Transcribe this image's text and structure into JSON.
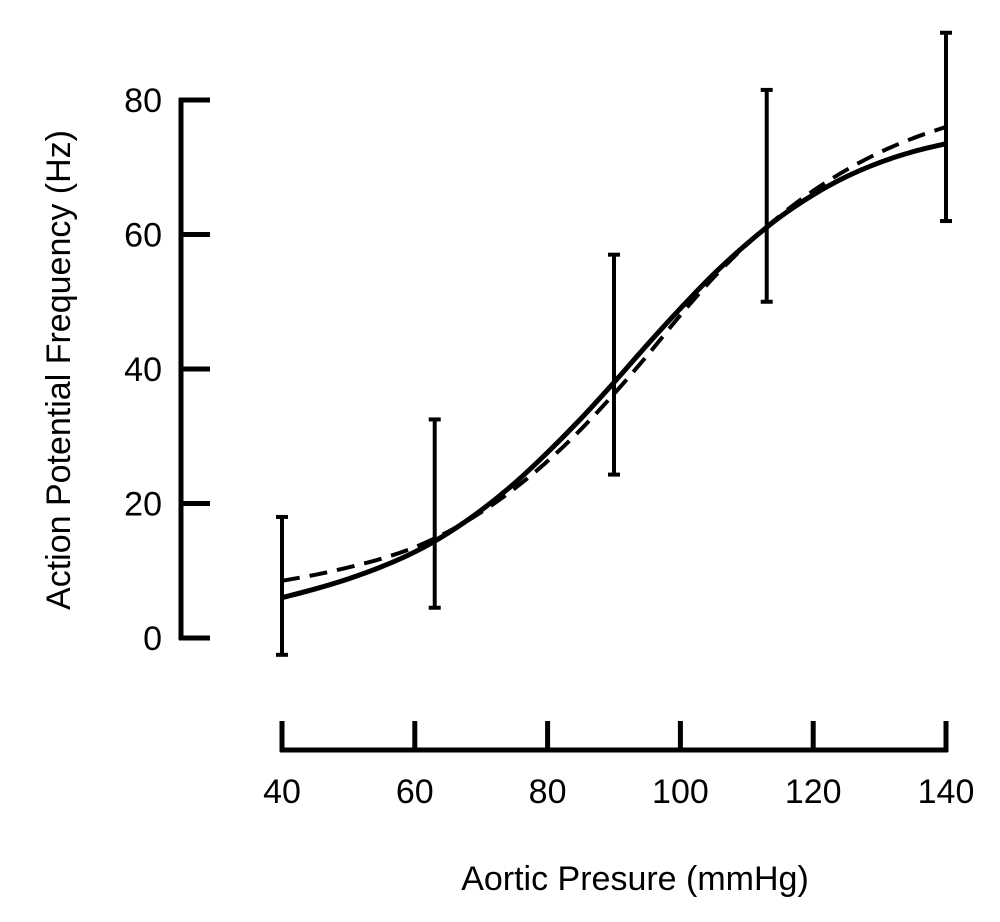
{
  "chart_data": {
    "type": "line",
    "xlabel": "Aortic Presure (mmHg)",
    "ylabel": "Action Potential Frequency (Hz)",
    "x_ticks": [
      40,
      60,
      80,
      100,
      120,
      140
    ],
    "y_ticks": [
      0,
      20,
      40,
      60,
      80
    ],
    "xlim": [
      40,
      140
    ],
    "ylim": [
      0,
      80
    ],
    "grid": false,
    "legend": "none",
    "series": [
      {
        "style": "solid",
        "x": [
          40,
          45,
          50,
          55,
          60,
          65,
          70,
          75,
          80,
          85,
          90,
          95,
          100,
          105,
          110,
          115,
          120,
          125,
          130,
          135,
          140
        ],
        "y": [
          6.0,
          7.3,
          8.8,
          10.6,
          12.8,
          15.6,
          19.0,
          23.0,
          27.6,
          32.6,
          38.0,
          43.6,
          49.0,
          54.1,
          58.6,
          62.6,
          65.9,
          68.6,
          70.7,
          72.3,
          73.5
        ]
      },
      {
        "style": "dashed",
        "x": [
          40,
          45,
          50,
          55,
          60,
          65,
          70,
          75,
          80,
          85,
          90,
          95,
          100,
          105,
          110,
          115,
          120,
          125,
          130,
          135,
          140
        ],
        "y": [
          8.5,
          9.4,
          10.5,
          11.8,
          13.5,
          15.8,
          18.7,
          22.2,
          26.3,
          31.0,
          36.3,
          42.0,
          48.0,
          53.6,
          58.5,
          62.8,
          66.5,
          69.6,
          72.2,
          74.3,
          76.0
        ]
      }
    ],
    "error_bars": [
      {
        "x": 40,
        "upper": 18,
        "lower": -2.5
      },
      {
        "x": 63,
        "upper": 32.5,
        "lower": 4.5
      },
      {
        "x": 90,
        "upper": 57,
        "lower": 24.3
      },
      {
        "x": 113,
        "upper": 81.5,
        "lower": 50
      },
      {
        "x": 140,
        "upper": 90,
        "lower": 62
      }
    ]
  }
}
